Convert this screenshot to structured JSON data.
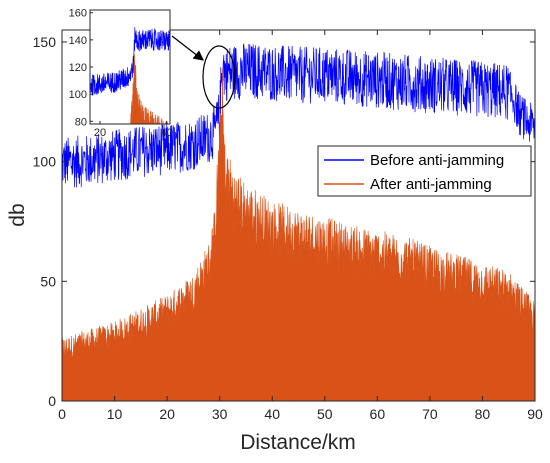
{
  "chart_data": {
    "type": "line",
    "title": "",
    "xlabel": "Distance/km",
    "ylabel": "db",
    "xlim": [
      0,
      90
    ],
    "ylim": [
      0,
      155
    ],
    "xticks": [
      0,
      10,
      20,
      30,
      40,
      50,
      60,
      70,
      80,
      90
    ],
    "yticks": [
      0,
      50,
      100,
      150
    ],
    "grid": false,
    "legend_position": "right",
    "series": [
      {
        "name": "Before anti-jamming",
        "color": "#0000ff",
        "x": [
          0,
          5,
          10,
          15,
          20,
          25,
          28,
          29,
          30,
          30.5,
          31,
          35,
          40,
          45,
          50,
          55,
          60,
          65,
          70,
          75,
          80,
          85,
          86,
          87,
          88,
          89,
          90
        ],
        "y": [
          102,
          103,
          105,
          107,
          108,
          110,
          113,
          115,
          122,
          145,
          140,
          141,
          140,
          139,
          139,
          138,
          137,
          136,
          135,
          134,
          133,
          132,
          128,
          122,
          120,
          118,
          117
        ]
      },
      {
        "name": "After anti-jamming",
        "color": "#d95319",
        "x": [
          0,
          5,
          10,
          15,
          20,
          25,
          28,
          29,
          30,
          30.5,
          31,
          33,
          35,
          40,
          45,
          50,
          55,
          60,
          65,
          70,
          75,
          80,
          85,
          88,
          90
        ],
        "y": [
          22,
          25,
          28,
          33,
          38,
          46,
          58,
          70,
          105,
          125,
          95,
          84,
          80,
          73,
          70,
          67,
          64,
          62,
          60,
          56,
          53,
          50,
          47,
          40,
          35
        ]
      }
    ],
    "inset": {
      "xlim": [
        17,
        41
      ],
      "ylim": [
        78,
        162
      ],
      "xticks": [
        20,
        40
      ],
      "yticks": [
        80,
        100,
        120,
        140,
        160
      ],
      "annotation": "zoomed view of the jump near 30 km"
    }
  }
}
